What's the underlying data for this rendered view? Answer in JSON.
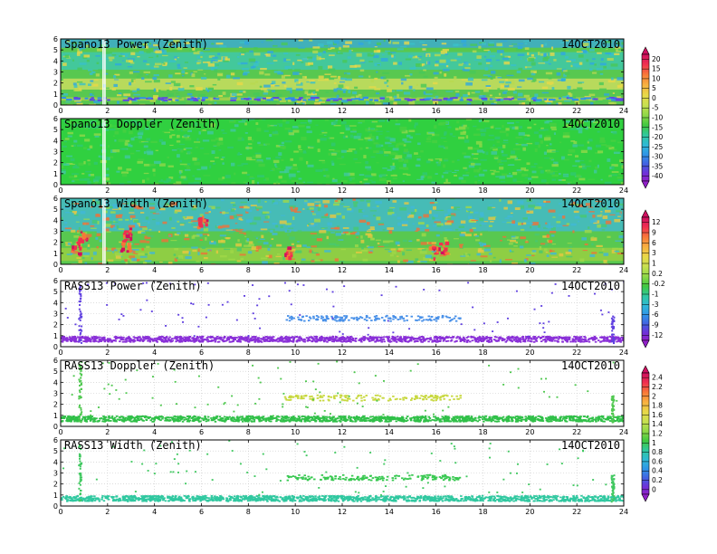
{
  "chart_data": [
    {
      "type": "heatmap",
      "title": "Spano13 Power (Zenith)",
      "date": "14OCT2010",
      "xlim": [
        0,
        24
      ],
      "ylim": [
        0,
        6
      ],
      "xticks": [
        "0",
        "2",
        "4",
        "6",
        "8",
        "10",
        "12",
        "14",
        "16",
        "18",
        "20",
        "22",
        "24"
      ],
      "yticks": [
        "0",
        "1",
        "2",
        "3",
        "4",
        "5",
        "6"
      ],
      "colorbar": [
        "20",
        "15",
        "10",
        "5",
        "0",
        "-5",
        "-10",
        "-15",
        "-20",
        "-25",
        "-30",
        "-35",
        "-40"
      ],
      "field": "dense",
      "layers": [
        {
          "range": [
            0.4,
            0.7
          ],
          "color": "#b4d24a",
          "label": "-5"
        },
        {
          "range": [
            1.4,
            2.4
          ],
          "color": "#d8e060",
          "label": "0"
        },
        {
          "range": [
            3.2,
            4.8
          ],
          "color": "#3cc8b4",
          "label": "-25"
        },
        {
          "range": [
            5.2,
            6.0
          ],
          "color": "#3aa8dc",
          "label": "-30"
        }
      ]
    },
    {
      "type": "heatmap",
      "title": "Spano13 Doppler (Zenith)",
      "date": "14OCT2010",
      "xlim": [
        0,
        24
      ],
      "ylim": [
        0,
        6
      ],
      "xticks": [
        "0",
        "2",
        "4",
        "6",
        "8",
        "10",
        "12",
        "14",
        "16",
        "18",
        "20",
        "22",
        "24"
      ],
      "yticks": [
        "0",
        "1",
        "2",
        "3",
        "4",
        "5",
        "6"
      ],
      "field": "dense",
      "layers": [
        {
          "range": [
            0.5,
            5.5
          ],
          "color": "#30d040",
          "label": "0"
        }
      ]
    },
    {
      "type": "heatmap",
      "title": "Spano13 Width (Zenith)",
      "date": "14OCT2010",
      "xlim": [
        0,
        24
      ],
      "ylim": [
        0,
        6
      ],
      "xticks": [
        "0",
        "2",
        "4",
        "6",
        "8",
        "10",
        "12",
        "14",
        "16",
        "18",
        "20",
        "22",
        "24"
      ],
      "yticks": [
        "0",
        "1",
        "2",
        "3",
        "4",
        "5",
        "6"
      ],
      "colorbar": [
        "12",
        "9",
        "6",
        "3",
        "1",
        "0.2",
        "-0.2",
        "-1",
        "-3",
        "-6",
        "-9",
        "-12"
      ],
      "field": "dense",
      "layers": [
        {
          "range": [
            0.3,
            1.5
          ],
          "color": "#a0d040",
          "label": "1"
        },
        {
          "range": [
            3.0,
            6.0
          ],
          "color": "#40b8d8",
          "label": "-3"
        }
      ]
    },
    {
      "type": "scatter",
      "title": "RASS13 Power (Zenith)",
      "date": "14OCT2010",
      "xlim": [
        0,
        24
      ],
      "ylim": [
        0,
        6
      ],
      "xticks": [
        "0",
        "2",
        "4",
        "6",
        "8",
        "10",
        "12",
        "14",
        "16",
        "18",
        "20",
        "22",
        "24"
      ],
      "yticks": [
        "0",
        "1",
        "2",
        "3",
        "4",
        "5",
        "6"
      ],
      "field": "sparse",
      "bands": [
        {
          "x": [
            0,
            24
          ],
          "y": [
            0.5,
            1.0
          ],
          "color": "#8a30d8",
          "density": 0.9
        },
        {
          "x": [
            9.5,
            17.0
          ],
          "y": [
            2.4,
            2.9
          ],
          "color": "#4890e8",
          "density": 0.5
        }
      ],
      "scatter_color": "#6040e0"
    },
    {
      "type": "scatter",
      "title": "RASS13 Doppler (Zenith)",
      "date": "14OCT2010",
      "xlim": [
        0,
        24
      ],
      "ylim": [
        0,
        6
      ],
      "xticks": [
        "0",
        "2",
        "4",
        "6",
        "8",
        "10",
        "12",
        "14",
        "16",
        "18",
        "20",
        "22",
        "24"
      ],
      "yticks": [
        "0",
        "1",
        "2",
        "3",
        "4",
        "5",
        "6"
      ],
      "colorbar": [
        "2.4",
        "2.2",
        "2",
        "1.8",
        "1.6",
        "1.4",
        "1.2",
        "1",
        "0.8",
        "0.6",
        "0.4",
        "0.2",
        "0"
      ],
      "field": "sparse",
      "bands": [
        {
          "x": [
            0,
            24
          ],
          "y": [
            0.5,
            1.0
          ],
          "color": "#30c048",
          "density": 0.9
        },
        {
          "x": [
            9.5,
            17.0
          ],
          "y": [
            2.4,
            2.9
          ],
          "color": "#c8d840",
          "density": 0.5
        }
      ],
      "scatter_color": "#50c850"
    },
    {
      "type": "scatter",
      "title": "RASS13 Width (Zenith)",
      "date": "14OCT2010",
      "xlim": [
        0,
        24
      ],
      "ylim": [
        0,
        6
      ],
      "xticks": [
        "0",
        "2",
        "4",
        "6",
        "8",
        "10",
        "12",
        "14",
        "16",
        "18",
        "20",
        "22",
        "24"
      ],
      "yticks": [
        "0",
        "1",
        "2",
        "3",
        "4",
        "5",
        "6"
      ],
      "field": "sparse",
      "bands": [
        {
          "x": [
            0,
            24
          ],
          "y": [
            0.5,
            1.0
          ],
          "color": "#30c8a0",
          "density": 0.9
        },
        {
          "x": [
            9.5,
            17.0
          ],
          "y": [
            2.4,
            2.9
          ],
          "color": "#38c850",
          "density": 0.5
        }
      ],
      "scatter_color": "#40c860"
    }
  ],
  "colors": {
    "scale": [
      "#d01060",
      "#f03050",
      "#f87838",
      "#f8b040",
      "#e8d848",
      "#c8e050",
      "#90d848",
      "#40c840",
      "#30c8a0",
      "#30b8d8",
      "#3090e8",
      "#4858e0",
      "#7030d8",
      "#9020c8"
    ]
  }
}
